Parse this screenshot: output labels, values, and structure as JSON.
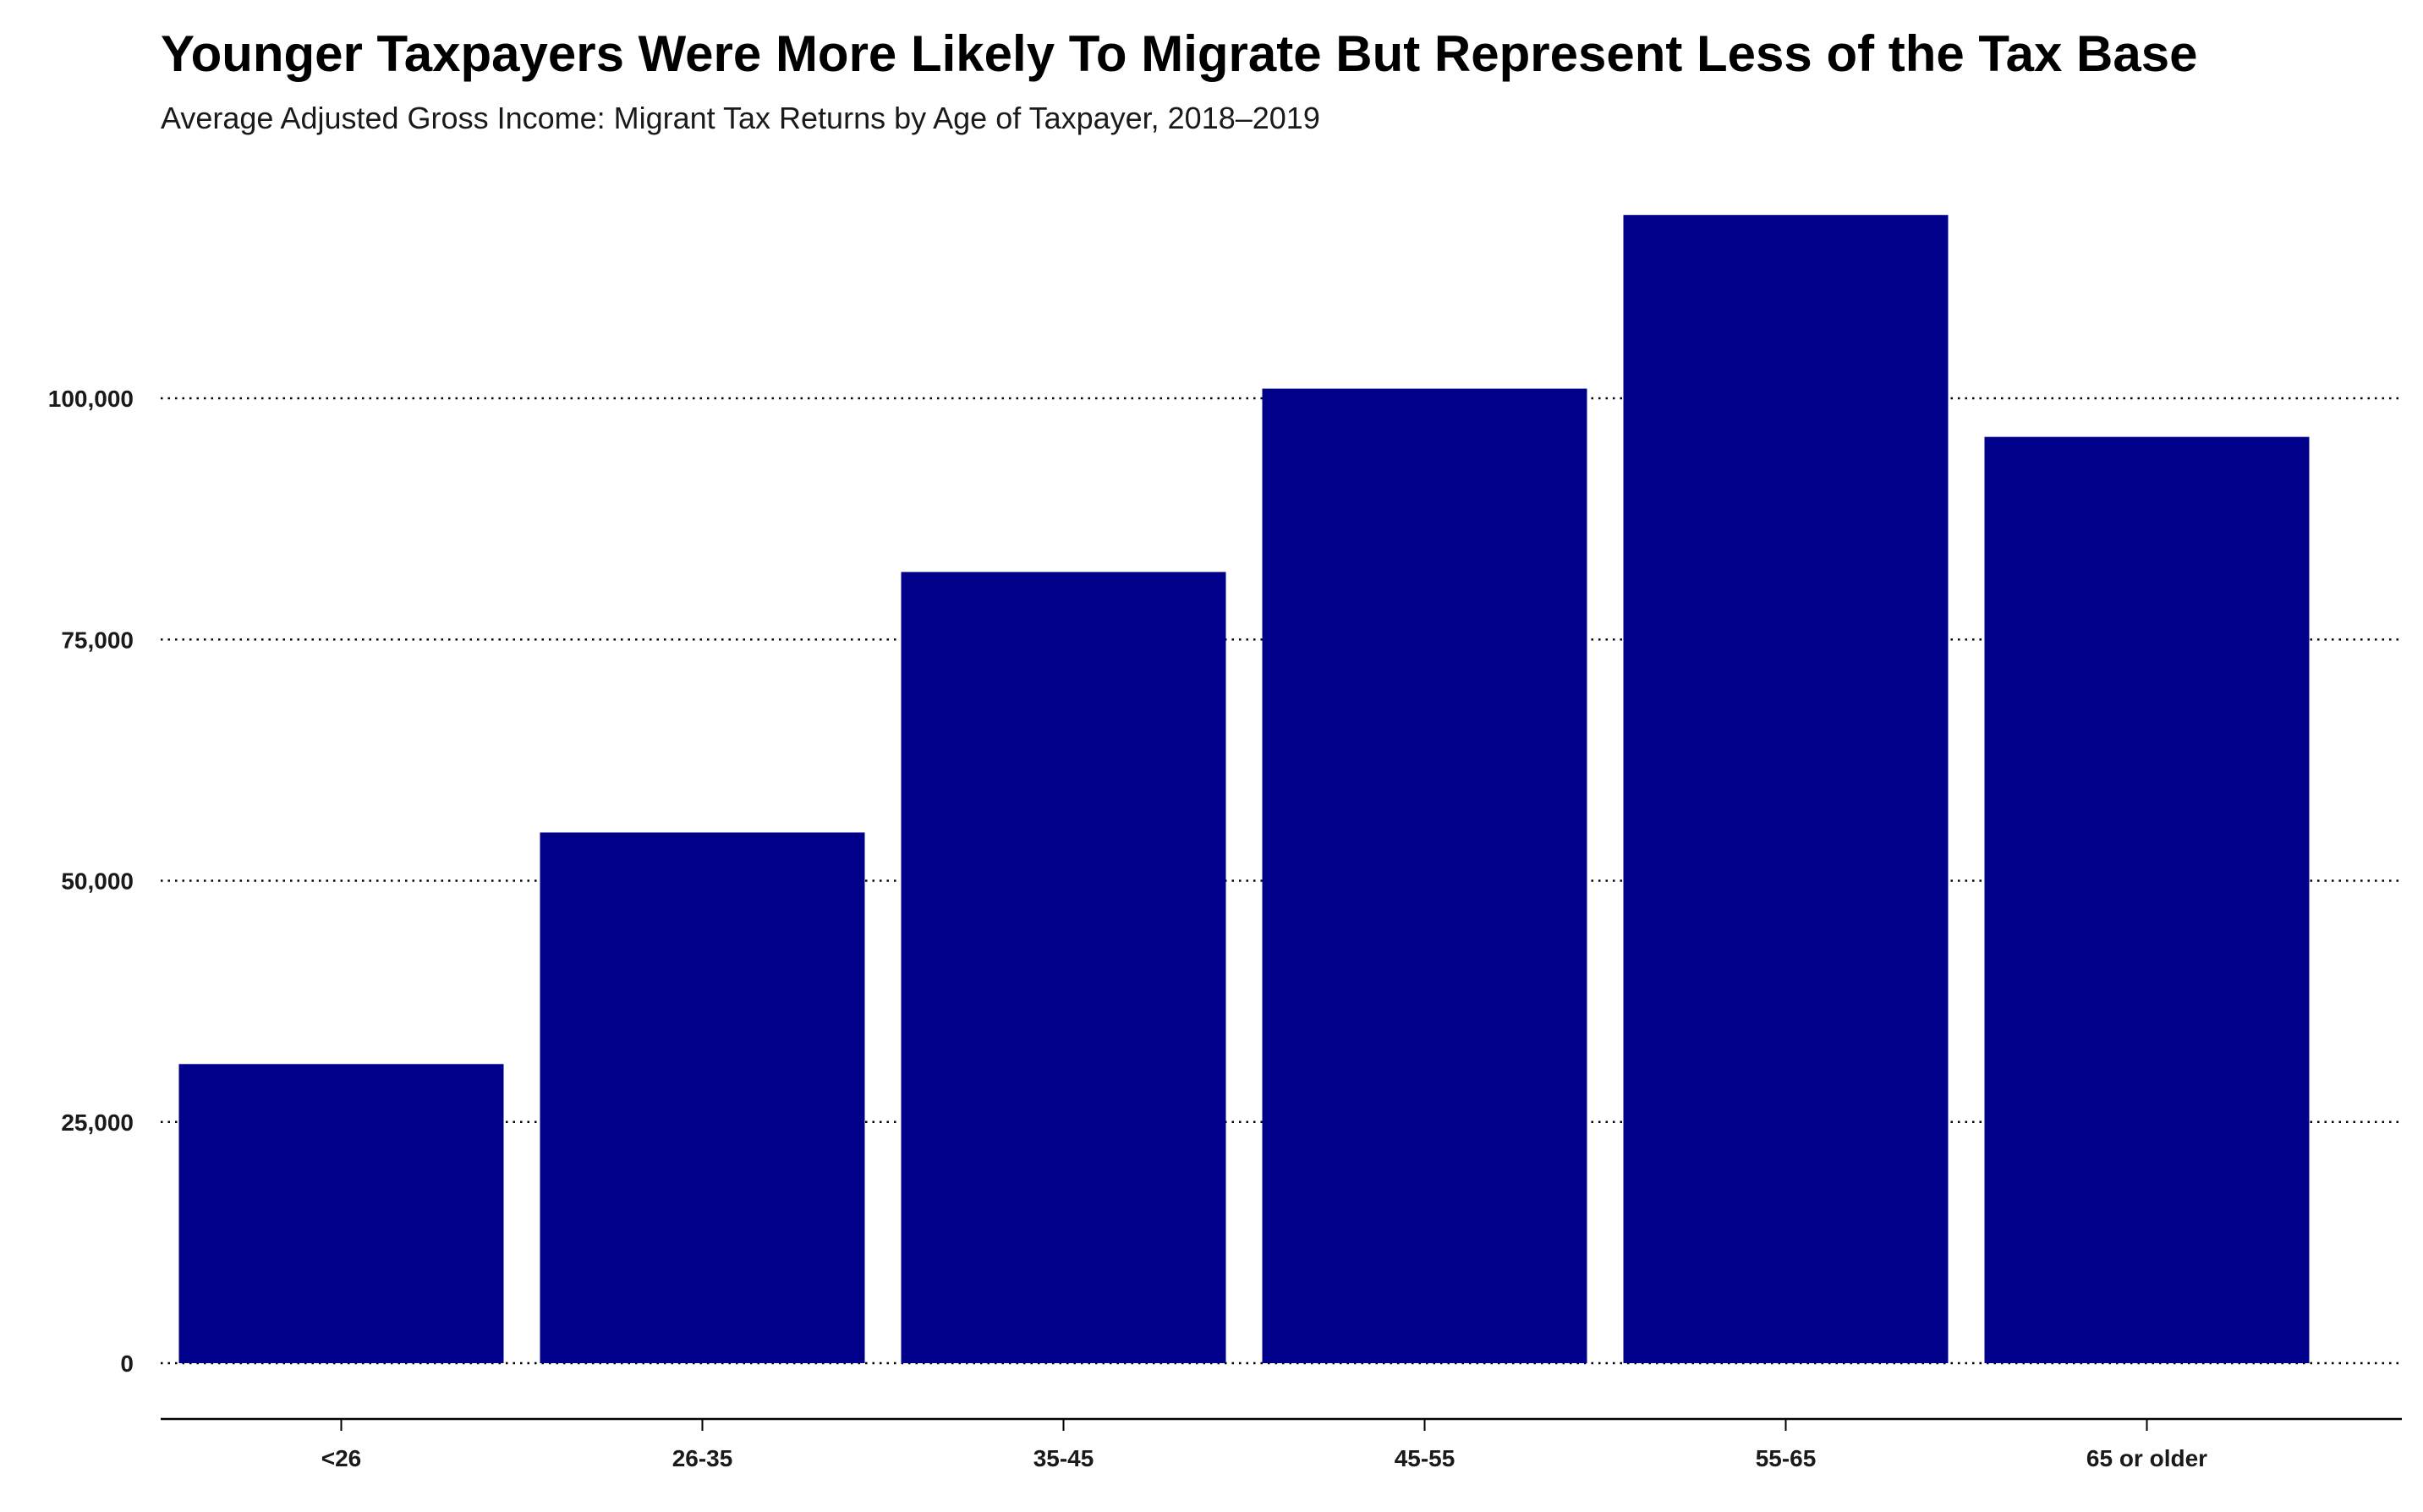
{
  "chart_data": {
    "type": "bar",
    "title": "Younger Taxpayers Were More Likely To Migrate But Represent Less of the Tax Base",
    "subtitle": "Average Adjusted Gross Income: Migrant Tax Returns by Age of Taxpayer, 2018–2019",
    "xlabel": "",
    "ylabel": "",
    "categories": [
      "<26",
      "26-35",
      "35-45",
      "45-55",
      "55-65",
      "65 or older"
    ],
    "values": [
      31000,
      55000,
      82000,
      101000,
      119000,
      96000
    ],
    "ylim": [
      0,
      120000
    ],
    "y_ticks": [
      0,
      25000,
      50000,
      75000,
      100000
    ],
    "y_tick_labels": [
      "0",
      "25,000",
      "50,000",
      "75,000",
      "100,000"
    ],
    "grid": true,
    "grid_style": "dotted",
    "legend": "none",
    "bar_color": "#00008B"
  }
}
